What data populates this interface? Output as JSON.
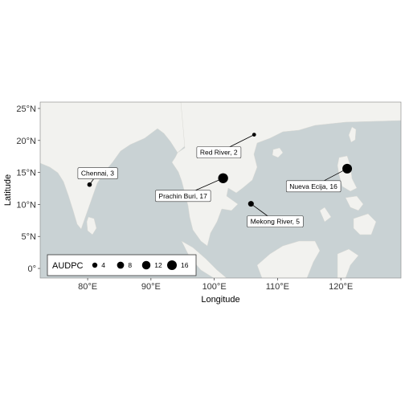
{
  "chart_data": {
    "type": "scatter",
    "xlabel": "Longitude",
    "ylabel": "Latitude",
    "xlim": [
      72.5,
      129.5
    ],
    "ylim": [
      -1.5,
      26
    ],
    "x_ticks": [
      80,
      90,
      100,
      110,
      120
    ],
    "y_ticks": [
      0,
      5,
      10,
      15,
      20,
      25
    ],
    "x_tick_labels": [
      "80°E",
      "90°E",
      "100°E",
      "110°E",
      "120°E"
    ],
    "y_tick_labels": [
      "0°",
      "5°N",
      "10°N",
      "15°N",
      "20°N",
      "25°N"
    ],
    "grid": false,
    "legend_position": "bottom-left",
    "legend": {
      "title": "AUDPC",
      "sizes": [
        4,
        8,
        12,
        16
      ],
      "labels": [
        "4",
        "8",
        "12",
        "16"
      ]
    },
    "points": [
      {
        "label": "Chennai, 3",
        "lon": 80.3,
        "lat": 13.1,
        "audpc": 3
      },
      {
        "label": "Red River, 2",
        "lon": 106.3,
        "lat": 20.9,
        "audpc": 2
      },
      {
        "label": "Prachin Buri, 17",
        "lon": 101.4,
        "lat": 14.1,
        "audpc": 17
      },
      {
        "label": "Mekong River, 5",
        "lon": 105.8,
        "lat": 10.1,
        "audpc": 5
      },
      {
        "label": "Nueva Ecija, 16",
        "lon": 121.0,
        "lat": 15.6,
        "audpc": 16
      }
    ]
  },
  "basemap": {
    "land_color": "#f2f2ef",
    "water_color": "#c9d2d4"
  }
}
